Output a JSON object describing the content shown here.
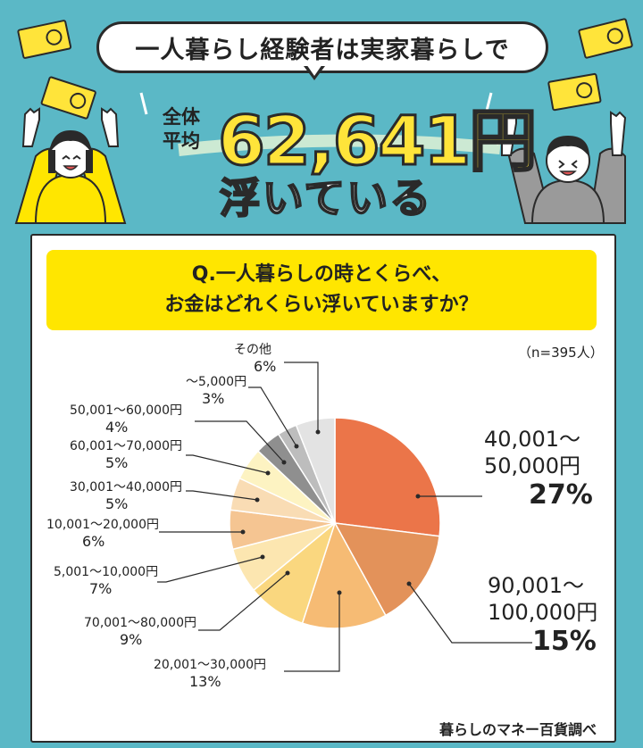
{
  "header": {
    "bubble": "一人暮らし経験者は実家暮らしで",
    "avg_label_1": "全体",
    "avg_label_2": "平均",
    "amount": "62,641円",
    "floats": "浮いている"
  },
  "question": {
    "line1": "Q.一人暮らしの時とくらべ、",
    "line2": "お金はどれくらい浮いていますか？"
  },
  "sample_size": "（n=395人）",
  "source": "暮らしのマネー百貨調べ",
  "chart_data": {
    "type": "pie",
    "title": "",
    "slices": [
      {
        "label1": "40,001～",
        "label2": "50,000円",
        "percent": 27,
        "color": "#eb7549"
      },
      {
        "label1": "90,001～",
        "label2": "100,000円",
        "percent": 15,
        "color": "#e3925a"
      },
      {
        "label1": "20,001～30,000円",
        "label2": "",
        "percent": 13,
        "color": "#f6bb74"
      },
      {
        "label1": "70,001～80,000円",
        "label2": "",
        "percent": 9,
        "color": "#fad77f"
      },
      {
        "label1": "5,001～10,000円",
        "label2": "",
        "percent": 7,
        "color": "#fce6b0"
      },
      {
        "label1": "10,001～20,000円",
        "label2": "",
        "percent": 6,
        "color": "#f5c592"
      },
      {
        "label1": "30,001～40,000円",
        "label2": "",
        "percent": 5,
        "color": "#f9dcb4"
      },
      {
        "label1": "60,001～70,000円",
        "label2": "",
        "percent": 5,
        "color": "#fdf3c2"
      },
      {
        "label1": "50,001～60,000円",
        "label2": "",
        "percent": 4,
        "color": "#8f8f8f"
      },
      {
        "label1": "～5,000円",
        "label2": "",
        "percent": 3,
        "color": "#bdbdbd"
      },
      {
        "label1": "その他",
        "label2": "",
        "percent": 6,
        "color": "#e3e3e3"
      }
    ]
  }
}
